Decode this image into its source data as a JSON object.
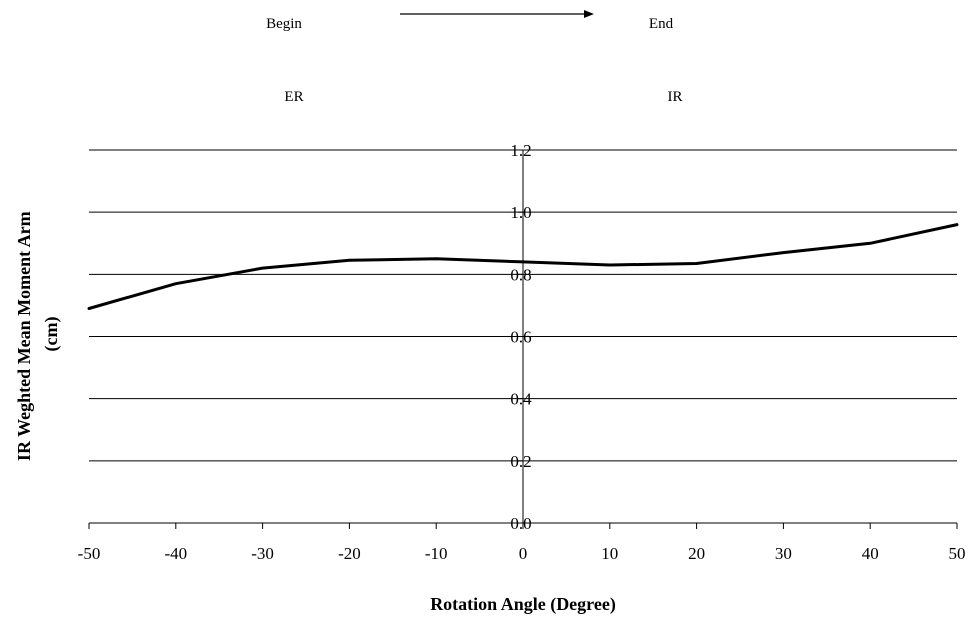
{
  "chart_data": {
    "type": "line",
    "title": "",
    "xlabel": "Rotation Angle (Degree)",
    "ylabel": "IR Weghted Mean Moment Arm (cm)",
    "ylabel_lines": [
      "IR Weghted Mean Moment Arm",
      "(cm)"
    ],
    "xlim": [
      -50,
      50
    ],
    "ylim": [
      0,
      1.2
    ],
    "x_ticks": [
      -50,
      -40,
      -30,
      -20,
      -10,
      0,
      10,
      20,
      30,
      40,
      50
    ],
    "y_ticks": [
      0.0,
      0.2,
      0.4,
      0.6,
      0.8,
      1.0,
      1.2
    ],
    "y_tick_labels": [
      "0.0",
      "0.2",
      "0.4",
      "0.6",
      "0.8",
      "1.0",
      "1.2"
    ],
    "grid": "horizontal",
    "legend": "none",
    "line_color": "#000000",
    "series": [
      {
        "x": [
          -50,
          -40,
          -30,
          -20,
          -10,
          0,
          10,
          20,
          30,
          40,
          50
        ],
        "y": [
          0.69,
          0.77,
          0.82,
          0.845,
          0.85,
          0.84,
          0.83,
          0.835,
          0.87,
          0.9,
          0.96
        ]
      }
    ],
    "annotations": {
      "begin": "Begin",
      "end": "End",
      "er": "ER",
      "ir": "IR"
    }
  }
}
